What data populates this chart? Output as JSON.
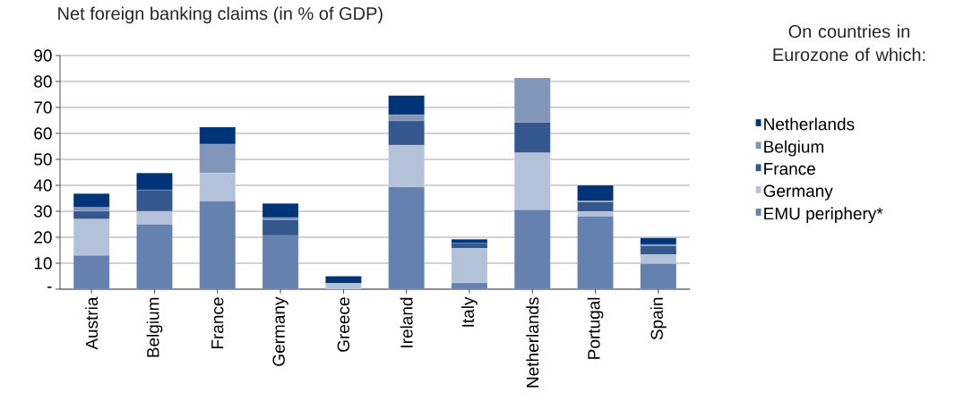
{
  "chart_data": {
    "type": "bar",
    "stacked": true,
    "title": "Net foreign banking claims (in % of GDP)",
    "legend_title": "On countries in Eurozone of which:",
    "categories": [
      "Austria",
      "Belgium",
      "France",
      "Germany",
      "Greece",
      "Ireland",
      "Italy",
      "Netherlands",
      "Portugal",
      "Spain"
    ],
    "series": [
      {
        "name": "EMU periphery*",
        "color": "#6581b0",
        "values": [
          13,
          25,
          34,
          20.7,
          0,
          39.4,
          2.4,
          30.6,
          28.1,
          9.8
        ]
      },
      {
        "name": "Germany",
        "color": "#b4c2d9",
        "values": [
          14,
          5,
          10.7,
          0,
          2.2,
          16.1,
          13.3,
          21.9,
          1.8,
          3.5
        ]
      },
      {
        "name": "France",
        "color": "#34578e",
        "values": [
          3,
          8.2,
          0,
          6,
          0,
          9.3,
          2,
          11.8,
          3.7,
          3.4
        ]
      },
      {
        "name": "Belgium",
        "color": "#8196b8",
        "values": [
          1.5,
          0,
          11.2,
          0.9,
          0,
          2.3,
          0,
          17.1,
          0.4,
          0.5
        ]
      },
      {
        "name": "Netherlands",
        "color": "#003478",
        "values": [
          5.3,
          6.5,
          6.5,
          5.4,
          2.8,
          7.5,
          1.5,
          0,
          6,
          2.5
        ]
      }
    ],
    "ylim": [
      0,
      90
    ],
    "yticks": [
      {
        "value": 0,
        "label": "-"
      },
      10,
      20,
      30,
      40,
      50,
      60,
      70,
      80,
      90
    ],
    "grid": "y",
    "legend": "right"
  }
}
